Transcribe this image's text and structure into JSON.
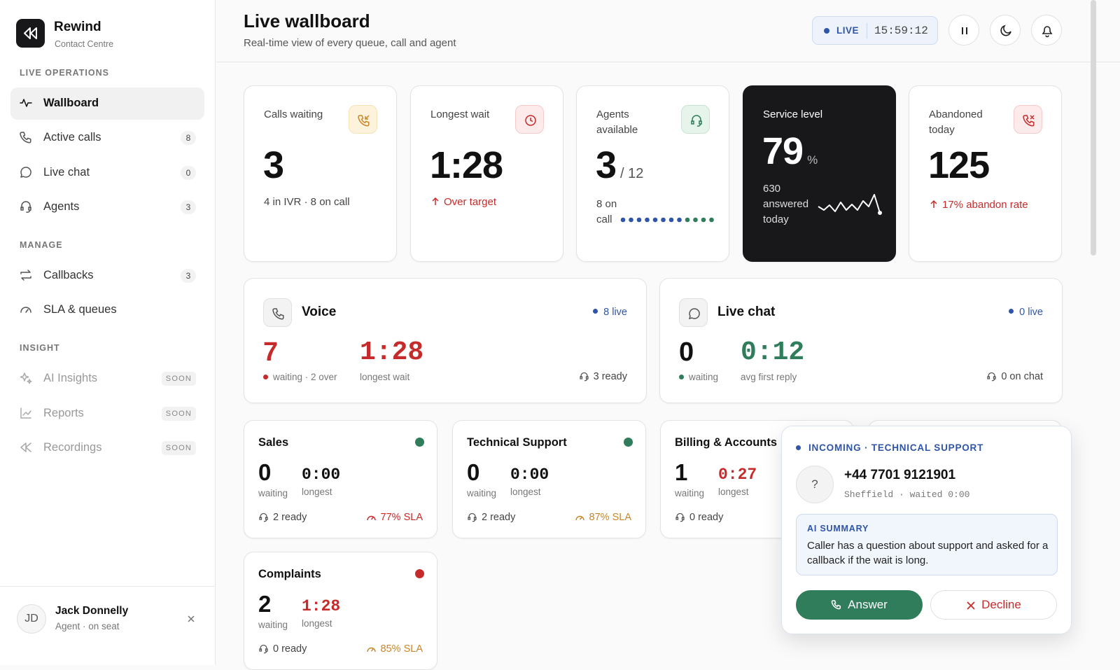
{
  "sidebar": {
    "brand": {
      "name": "Rewind",
      "subtitle": "Contact Centre"
    },
    "sections": [
      {
        "title": "LIVE OPERATIONS",
        "items": [
          {
            "label": "Wallboard"
          },
          {
            "label": "Active calls",
            "badge": "8"
          },
          {
            "label": "Live chat",
            "badge": "0"
          },
          {
            "label": "Agents",
            "badge": "3"
          }
        ]
      },
      {
        "title": "MANAGE",
        "items": [
          {
            "label": "Callbacks",
            "badge": "3"
          },
          {
            "label": "SLA & queues"
          }
        ]
      },
      {
        "title": "INSIGHT",
        "items": [
          {
            "label": "AI Insights",
            "badge": "SOON"
          },
          {
            "label": "Reports",
            "badge": "SOON"
          },
          {
            "label": "Recordings",
            "badge": "SOON"
          }
        ]
      }
    ],
    "user": {
      "initials": "JD",
      "name": "Jack Donnelly",
      "role": "Agent · on seat"
    }
  },
  "header": {
    "title": "Live wallboard",
    "subtitle": "Real-time view of every queue, call and agent",
    "live": "LIVE",
    "clock": "15:59:12"
  },
  "kpis": [
    {
      "label": "Calls waiting",
      "value": "3",
      "note": "4 in IVR · 8 on call"
    },
    {
      "label": "Longest wait",
      "value": "1:28",
      "note": "Over target"
    },
    {
      "label": "Agents available",
      "value": "3",
      "suffix": "/ 12",
      "note": "8 on call"
    },
    {
      "label": "Service level",
      "value": "79",
      "suffix": "%",
      "note": "630 answered today"
    },
    {
      "label": "Abandoned today",
      "value": "125",
      "note": "17% abandon rate"
    }
  ],
  "channels": [
    {
      "name": "Voice",
      "live": "8 live",
      "stat1": {
        "value": "7",
        "label": "waiting · 2 over"
      },
      "stat2": {
        "value": "1:28",
        "label": "longest wait"
      },
      "footer": "3 ready"
    },
    {
      "name": "Live chat",
      "live": "0 live",
      "stat1": {
        "value": "0",
        "label": "waiting"
      },
      "stat2": {
        "value": "0:12",
        "label": "avg first reply"
      },
      "footer": "0 on chat"
    }
  ],
  "queues": [
    {
      "name": "Sales",
      "waiting": "0",
      "waiting_label": "waiting",
      "longest": "0:00",
      "longest_label": "longest",
      "ready": "2 ready",
      "sla": "77% SLA"
    },
    {
      "name": "Technical Support",
      "waiting": "0",
      "waiting_label": "waiting",
      "longest": "0:00",
      "longest_label": "longest",
      "ready": "2 ready",
      "sla": "87% SLA"
    },
    {
      "name": "Billing & Accounts",
      "waiting": "1",
      "waiting_label": "waiting",
      "longest": "0:27",
      "longest_label": "longest",
      "ready": "0 ready"
    },
    {
      "name": "Complaints",
      "waiting": "2",
      "waiting_label": "waiting",
      "longest": "1:28",
      "longest_label": "longest",
      "ready": "0 ready",
      "sla": "85% SLA"
    }
  ],
  "incoming": {
    "title": "INCOMING · TECHNICAL SUPPORT",
    "avatar": "?",
    "number": "+44 7701 9121901",
    "meta": "Sheffield · waited 0:00",
    "summary_title": "AI SUMMARY",
    "summary": "Caller has a question about support and asked for a callback if the wait is long.",
    "answer": "Answer",
    "decline": "Decline"
  }
}
